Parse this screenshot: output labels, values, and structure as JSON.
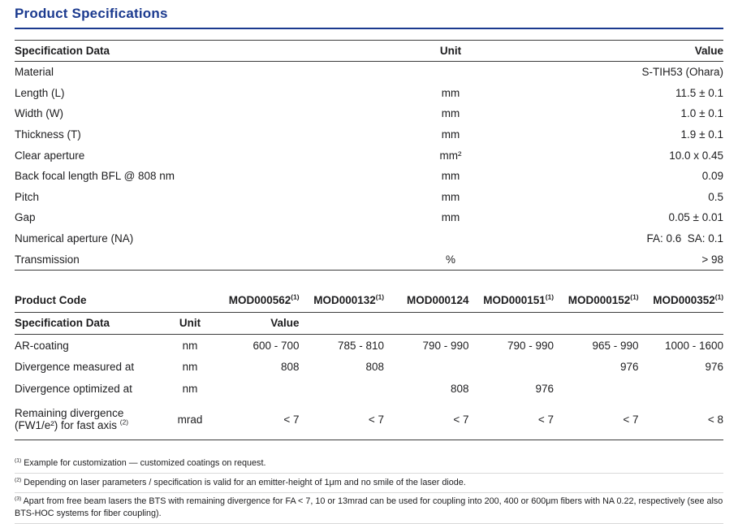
{
  "colors": {
    "accent": "#1b3a8f",
    "border_dark": "#3c3c3c"
  },
  "page": {
    "title": "Product Specifications"
  },
  "table1": {
    "headers": {
      "spec": "Specification Data",
      "unit": "Unit",
      "value": "Value"
    },
    "rows": [
      {
        "spec": "Material",
        "unit": "",
        "value": "S-TIH53 (Ohara)"
      },
      {
        "spec": "Length (L)",
        "unit": "mm",
        "value": "11.5 ± 0.1"
      },
      {
        "spec": "Width (W)",
        "unit": "mm",
        "value": "1.0 ± 0.1"
      },
      {
        "spec": "Thickness (T)",
        "unit": "mm",
        "value": "1.9 ± 0.1"
      },
      {
        "spec": "Clear aperture",
        "unit": "mm²",
        "value": "10.0 x 0.45"
      },
      {
        "spec": "Back focal length BFL @ 808 nm",
        "unit": "mm",
        "value": "0.09"
      },
      {
        "spec": "Pitch",
        "unit": "mm",
        "value": "0.5"
      },
      {
        "spec": "Gap",
        "unit": "mm",
        "value": "0.05 ± 0.01"
      },
      {
        "spec": "Numerical aperture (NA)",
        "unit": "",
        "value": "FA: 0.6  SA: 0.1"
      },
      {
        "spec": "Transmission",
        "unit": "%",
        "value": "> 98"
      }
    ]
  },
  "table2": {
    "product_code_label": "Product Code",
    "product_codes": [
      {
        "code": "MOD000562",
        "note": "(1)"
      },
      {
        "code": "MOD000132",
        "note": "(1)"
      },
      {
        "code": "MOD000124",
        "note": ""
      },
      {
        "code": "MOD000151",
        "note": "(1)"
      },
      {
        "code": "MOD000152",
        "note": "(1)"
      },
      {
        "code": "MOD000352",
        "note": "(1)"
      }
    ],
    "headers": {
      "spec": "Specification Data",
      "unit": "Unit",
      "value": "Value"
    },
    "rows": [
      {
        "spec": "AR-coating",
        "note": "",
        "unit": "nm",
        "values": [
          "600 - 700",
          "785 - 810",
          "790 - 990",
          "790 - 990",
          "965 - 990",
          "1000 - 1600"
        ]
      },
      {
        "spec": "Divergence measured at",
        "note": "",
        "unit": "nm",
        "values": [
          "808",
          "808",
          "",
          "",
          "976",
          "976"
        ]
      },
      {
        "spec": "Divergence optimized at",
        "note": "",
        "unit": "nm",
        "values": [
          "",
          "",
          "808",
          "976",
          "",
          ""
        ]
      },
      {
        "spec": "Remaining divergence (FW1/e²) for fast axis",
        "note": "(2)",
        "unit": "mrad",
        "values": [
          "< 7",
          "< 7",
          "< 7",
          "< 7",
          "< 7",
          "< 8"
        ]
      }
    ]
  },
  "footnotes": [
    {
      "marker": "(1)",
      "text": "Example for customization — customized coatings on request."
    },
    {
      "marker": "(2)",
      "text": "Depending on laser parameters / specification is valid for an emitter-height of 1μm and no smile of the laser diode."
    },
    {
      "marker": "(3)",
      "text": "Apart from free beam lasers the BTS with remaining divergence for FA < 7, 10 or 13mrad can be used for coupling into 200, 400 or 600μm fibers with NA 0.22, respectively (see also BTS-HOC systems for fiber coupling)."
    }
  ]
}
